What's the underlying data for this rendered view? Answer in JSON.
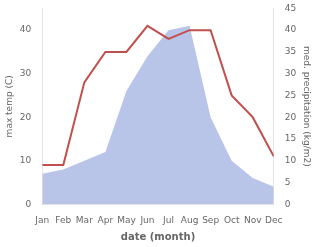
{
  "chart_data": {
    "type": "line",
    "xlabel": "date (month)",
    "ylabel": "max temp (C)",
    "y2label": "med. precipitation (kg/m2)",
    "categories": [
      "Jan",
      "Feb",
      "Mar",
      "Apr",
      "May",
      "Jun",
      "Jul",
      "Aug",
      "Sep",
      "Oct",
      "Nov",
      "Dec"
    ],
    "series": [
      {
        "type": "line",
        "color": "#c0504d",
        "values": [
          9,
          9,
          28,
          35,
          35,
          41,
          38,
          40,
          40,
          25,
          20,
          11
        ]
      },
      {
        "type": "area",
        "color": "#b8c4e8",
        "axis": "y2",
        "values": [
          7,
          8,
          10,
          12,
          26,
          34,
          40,
          41,
          20,
          10,
          6,
          4
        ]
      }
    ],
    "ylim": [
      0,
      45
    ],
    "yticks": [
      0,
      10,
      20,
      30,
      40
    ],
    "y2lim": [
      0,
      45
    ],
    "y2ticks": [
      0,
      5,
      10,
      15,
      20,
      25,
      30,
      35,
      40,
      45
    ],
    "grid": false
  }
}
